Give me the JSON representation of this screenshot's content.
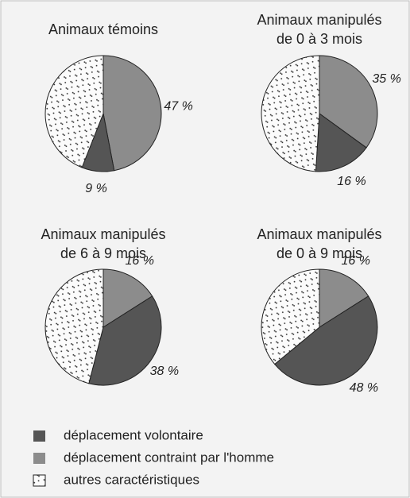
{
  "chart_data": [
    {
      "type": "pie",
      "title": [
        "Animaux témoins"
      ],
      "categories": [
        "déplacement volontaire",
        "déplacement contraint par l'homme",
        "autres caractéristiques"
      ],
      "colors": [
        "#555555",
        "#8c8c8c",
        "dots"
      ],
      "values": [
        9,
        47,
        44
      ],
      "value_labels": [
        "9 %",
        "47 %",
        null
      ]
    },
    {
      "type": "pie",
      "title": [
        "Animaux manipulés",
        "de 0 à 3 mois"
      ],
      "values": [
        16,
        35,
        49
      ],
      "value_labels": [
        "16 %",
        "35 %",
        null
      ]
    },
    {
      "type": "pie",
      "title": [
        "Animaux manipulés",
        "de 6 à 9 mois"
      ],
      "values": [
        38,
        16,
        46
      ],
      "value_labels": [
        "38 %",
        "16 %",
        null
      ]
    },
    {
      "type": "pie",
      "title": [
        "Animaux manipulés",
        "de 0 à 9 mois"
      ],
      "values": [
        48,
        16,
        36
      ],
      "value_labels": [
        "48 %",
        "16 %",
        null
      ]
    }
  ]
}
